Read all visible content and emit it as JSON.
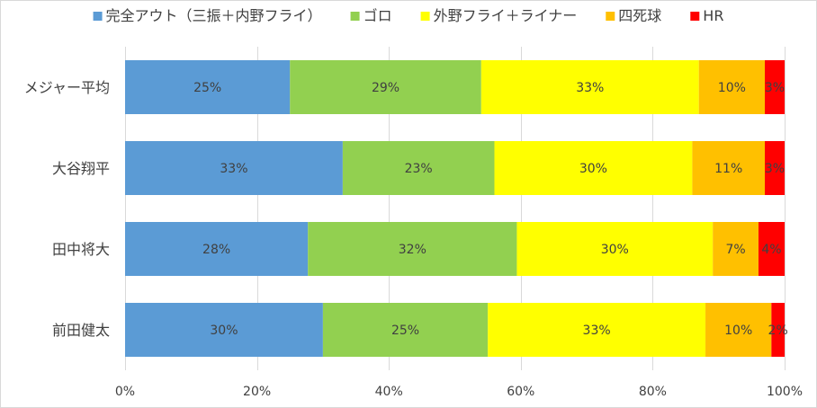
{
  "chart_data": {
    "type": "bar",
    "orientation": "horizontal",
    "stacked": true,
    "percent": true,
    "categories": [
      "メジャー平均",
      "大谷翔平",
      "田中将大",
      "前田健太"
    ],
    "series": [
      {
        "name": "完全アウト（三振＋内野フライ）",
        "color": "#5b9bd5",
        "values": [
          25,
          33,
          28,
          30
        ],
        "labels": [
          "25%",
          "33%",
          "28%",
          "30%"
        ]
      },
      {
        "name": "ゴロ",
        "color": "#92d050",
        "values": [
          29,
          23,
          32,
          25
        ],
        "labels": [
          "29%",
          "23%",
          "32%",
          "25%"
        ]
      },
      {
        "name": "外野フライ＋ライナー",
        "color": "#ffff00",
        "values": [
          33,
          30,
          30,
          33
        ],
        "labels": [
          "33%",
          "30%",
          "30%",
          "33%"
        ]
      },
      {
        "name": "四死球",
        "color": "#ffc000",
        "values": [
          10,
          11,
          7,
          10
        ],
        "labels": [
          "10%",
          "11%",
          "7%",
          "10%"
        ]
      },
      {
        "name": "HR",
        "color": "#ff0000",
        "values": [
          3,
          3,
          4,
          2
        ],
        "labels": [
          "3%",
          "3%",
          "4%",
          "2%"
        ]
      }
    ],
    "xlim": [
      0,
      100
    ],
    "xticks": [
      "0%",
      "20%",
      "40%",
      "60%",
      "80%",
      "100%"
    ],
    "legend_position": "top",
    "grid": true
  }
}
